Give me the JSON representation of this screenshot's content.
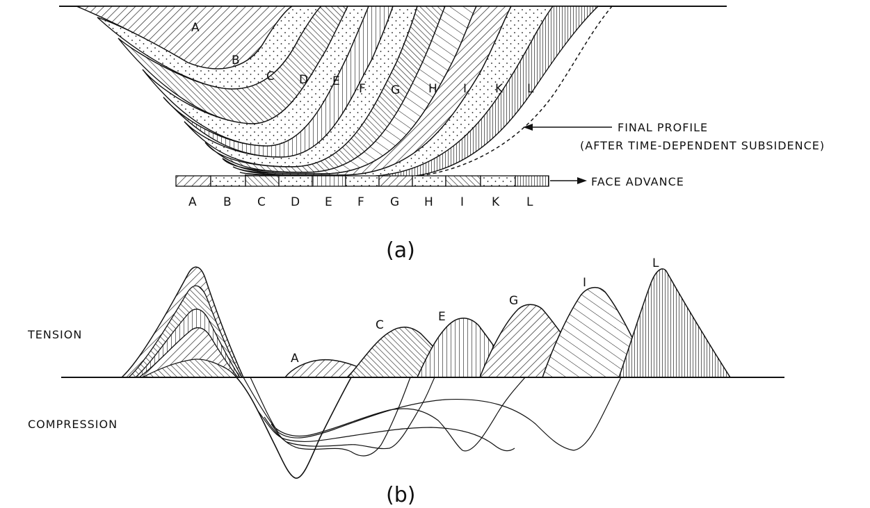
{
  "panel_a": {
    "layer_labels": [
      "A",
      "B",
      "C",
      "D",
      "E",
      "F",
      "G",
      "H",
      "I",
      "K",
      "L"
    ],
    "face_labels": [
      "A",
      "B",
      "C",
      "D",
      "E",
      "F",
      "G",
      "H",
      "I",
      "K",
      "L"
    ],
    "final_profile_line1": "FINAL PROFILE",
    "final_profile_line2": "(AFTER TIME-DEPENDENT SUBSIDENCE)",
    "face_advance": "FACE ADVANCE",
    "caption": "(a)"
  },
  "panel_b": {
    "tension": "TENSION",
    "compression": "COMPRESSION",
    "curve_labels": [
      "A",
      "C",
      "E",
      "G",
      "I",
      "L"
    ],
    "caption": "(b)"
  }
}
